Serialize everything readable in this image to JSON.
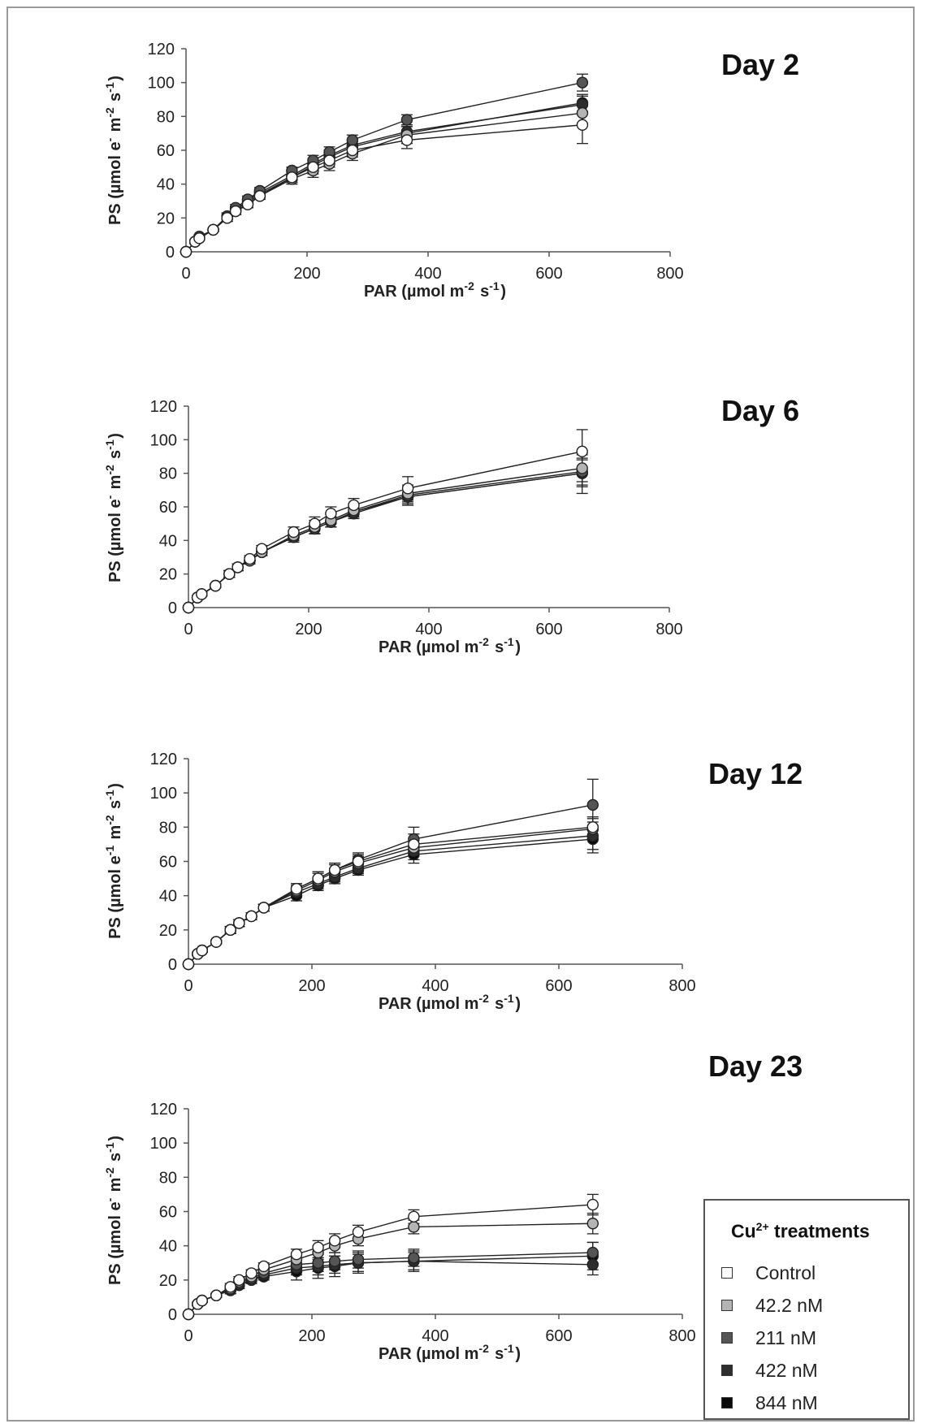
{
  "chart_data": [
    {
      "type": "line",
      "title": "Day 2",
      "xlabel": "PAR (µmol m-2 s-1)",
      "ylabel": "PS (µmol e- m-2 s-1)",
      "xlim": [
        0,
        800
      ],
      "ylim": [
        0,
        120
      ],
      "xticks": [
        "0",
        "200",
        "400",
        "600",
        "800"
      ],
      "yticks": [
        "0",
        "20",
        "40",
        "60",
        "80",
        "100",
        "120"
      ],
      "x": [
        0,
        15,
        22,
        45,
        68,
        82,
        102,
        122,
        175,
        210,
        237,
        275,
        365,
        655
      ],
      "series": [
        {
          "name": "Control",
          "values": [
            0,
            6,
            8,
            13,
            20,
            24,
            28,
            33,
            44,
            50,
            54,
            60,
            66,
            75
          ],
          "err": [
            0,
            1,
            1,
            1,
            2,
            2,
            2,
            2,
            3,
            4,
            4,
            4,
            5,
            11
          ]
        },
        {
          "name": "42.2 nM",
          "values": [
            0,
            6,
            8,
            13,
            20,
            24,
            28,
            33,
            43,
            48,
            52,
            58,
            69,
            82
          ],
          "err": [
            0,
            1,
            1,
            1,
            2,
            2,
            2,
            2,
            3,
            4,
            4,
            4,
            5,
            6
          ]
        },
        {
          "name": "211 nM",
          "values": [
            0,
            6,
            9,
            13,
            21,
            26,
            31,
            36,
            48,
            54,
            59,
            66,
            78,
            100
          ],
          "err": [
            0,
            1,
            1,
            1,
            2,
            2,
            2,
            2,
            2,
            3,
            3,
            3,
            3,
            5
          ]
        },
        {
          "name": "422 nM",
          "values": [
            0,
            6,
            8,
            13,
            21,
            25,
            30,
            35,
            45,
            52,
            57,
            63,
            71,
            87
          ],
          "err": [
            0,
            1,
            1,
            1,
            2,
            2,
            2,
            2,
            3,
            3,
            3,
            3,
            4,
            5
          ]
        },
        {
          "name": "844 nM",
          "values": [
            0,
            6,
            8,
            13,
            20,
            25,
            29,
            34,
            44,
            51,
            56,
            62,
            70,
            88
          ],
          "err": [
            0,
            1,
            1,
            1,
            2,
            2,
            2,
            2,
            3,
            3,
            3,
            3,
            4,
            5
          ]
        }
      ]
    },
    {
      "type": "line",
      "title": "Day 6",
      "xlabel": "PAR (µmol m-2 s-1)",
      "ylabel": "PS (µmol e- m-2 s-1)",
      "xlim": [
        0,
        800
      ],
      "ylim": [
        0,
        120
      ],
      "xticks": [
        "0",
        "200",
        "400",
        "600",
        "800"
      ],
      "yticks": [
        "0",
        "20",
        "40",
        "60",
        "80",
        "100",
        "120"
      ],
      "x": [
        0,
        15,
        22,
        45,
        68,
        82,
        102,
        122,
        175,
        210,
        237,
        275,
        365,
        655
      ],
      "series": [
        {
          "name": "Control",
          "values": [
            0,
            6,
            8,
            13,
            20,
            24,
            29,
            35,
            45,
            50,
            56,
            61,
            71,
            93
          ],
          "err": [
            0,
            1,
            1,
            1,
            2,
            2,
            2,
            2,
            3,
            4,
            4,
            4,
            7,
            13
          ]
        },
        {
          "name": "42.2 nM",
          "values": [
            0,
            6,
            8,
            13,
            20,
            24,
            28,
            33,
            43,
            48,
            52,
            58,
            68,
            83
          ],
          "err": [
            0,
            1,
            1,
            1,
            2,
            2,
            2,
            2,
            3,
            4,
            4,
            4,
            5,
            8
          ]
        },
        {
          "name": "211 nM",
          "values": [
            0,
            6,
            8,
            13,
            20,
            24,
            28,
            33,
            42,
            47,
            51,
            57,
            67,
            81
          ],
          "err": [
            0,
            1,
            1,
            1,
            2,
            2,
            2,
            2,
            3,
            3,
            3,
            3,
            5,
            8
          ]
        },
        {
          "name": "422 nM",
          "values": [
            0,
            6,
            8,
            13,
            20,
            24,
            28,
            33,
            42,
            47,
            51,
            56,
            66,
            80
          ],
          "err": [
            0,
            1,
            1,
            1,
            2,
            2,
            2,
            2,
            3,
            3,
            3,
            3,
            5,
            8
          ]
        },
        {
          "name": "844 nM",
          "values": [
            0,
            6,
            8,
            13,
            20,
            24,
            28,
            33,
            42,
            47,
            51,
            57,
            66,
            80
          ],
          "err": [
            0,
            1,
            1,
            1,
            2,
            2,
            2,
            2,
            3,
            3,
            3,
            3,
            5,
            12
          ]
        }
      ]
    },
    {
      "type": "line",
      "title": "Day 12",
      "xlabel": "PAR (µmol m-2 s-1)",
      "ylabel": "PS (µmol e-1 m-2 s-1)",
      "xlim": [
        0,
        800
      ],
      "ylim": [
        0,
        120
      ],
      "xticks": [
        "0",
        "200",
        "400",
        "600",
        "800"
      ],
      "yticks": [
        "0",
        "20",
        "40",
        "60",
        "80",
        "100",
        "120"
      ],
      "x": [
        0,
        15,
        22,
        45,
        68,
        82,
        102,
        122,
        175,
        210,
        237,
        275,
        365,
        655
      ],
      "series": [
        {
          "name": "Control",
          "values": [
            0,
            6,
            8,
            13,
            20,
            24,
            28,
            33,
            44,
            50,
            55,
            60,
            70,
            80
          ],
          "err": [
            0,
            1,
            1,
            1,
            2,
            2,
            2,
            2,
            3,
            4,
            4,
            4,
            6,
            6
          ]
        },
        {
          "name": "42.2 nM",
          "values": [
            0,
            6,
            8,
            13,
            20,
            24,
            28,
            33,
            43,
            49,
            54,
            59,
            68,
            79
          ],
          "err": [
            0,
            1,
            1,
            1,
            2,
            2,
            2,
            2,
            3,
            4,
            4,
            4,
            5,
            6
          ]
        },
        {
          "name": "211 nM",
          "values": [
            0,
            6,
            8,
            13,
            20,
            24,
            28,
            33,
            44,
            50,
            55,
            61,
            73,
            93
          ],
          "err": [
            0,
            1,
            1,
            1,
            2,
            2,
            2,
            2,
            3,
            4,
            4,
            4,
            7,
            15
          ]
        },
        {
          "name": "422 nM",
          "values": [
            0,
            6,
            8,
            13,
            20,
            24,
            28,
            33,
            42,
            47,
            51,
            56,
            66,
            75
          ],
          "err": [
            0,
            1,
            1,
            1,
            2,
            2,
            2,
            2,
            3,
            3,
            3,
            3,
            5,
            8
          ]
        },
        {
          "name": "844 nM",
          "values": [
            0,
            6,
            8,
            13,
            20,
            24,
            28,
            33,
            40,
            46,
            50,
            55,
            64,
            73
          ],
          "err": [
            0,
            1,
            1,
            1,
            2,
            2,
            2,
            2,
            3,
            3,
            3,
            3,
            5,
            8
          ]
        }
      ]
    },
    {
      "type": "line",
      "title": "Day 23",
      "xlabel": "PAR (µmol m-2 s-1)",
      "ylabel": "PS (µmol e- m-2 s-1)",
      "xlim": [
        0,
        800
      ],
      "ylim": [
        0,
        120
      ],
      "xticks": [
        "0",
        "200",
        "400",
        "600",
        "800"
      ],
      "yticks": [
        "0",
        "20",
        "40",
        "60",
        "80",
        "100",
        "120"
      ],
      "x": [
        0,
        15,
        22,
        45,
        68,
        82,
        102,
        122,
        175,
        210,
        237,
        275,
        365,
        655
      ],
      "series": [
        {
          "name": "Control",
          "values": [
            0,
            6,
            8,
            11,
            16,
            20,
            24,
            28,
            35,
            39,
            43,
            48,
            57,
            64
          ],
          "err": [
            0,
            1,
            1,
            1,
            2,
            2,
            2,
            2,
            3,
            4,
            4,
            4,
            4,
            6
          ]
        },
        {
          "name": "42.2 nM",
          "values": [
            0,
            6,
            8,
            11,
            15,
            19,
            22,
            26,
            32,
            36,
            40,
            44,
            51,
            53
          ],
          "err": [
            0,
            1,
            1,
            1,
            2,
            2,
            2,
            2,
            3,
            4,
            4,
            4,
            4,
            6
          ]
        },
        {
          "name": "211 nM",
          "values": [
            0,
            6,
            8,
            11,
            15,
            18,
            21,
            24,
            29,
            30,
            31,
            32,
            33,
            36
          ],
          "err": [
            0,
            1,
            1,
            1,
            2,
            2,
            2,
            2,
            4,
            5,
            5,
            5,
            5,
            6
          ]
        },
        {
          "name": "422 nM",
          "values": [
            0,
            6,
            8,
            11,
            14,
            17,
            20,
            23,
            27,
            28,
            29,
            30,
            31,
            29
          ],
          "err": [
            0,
            1,
            1,
            1,
            2,
            2,
            2,
            2,
            4,
            5,
            5,
            5,
            5,
            6
          ]
        },
        {
          "name": "844 nM",
          "values": [
            0,
            6,
            8,
            11,
            14,
            17,
            20,
            22,
            25,
            27,
            28,
            30,
            31,
            34
          ],
          "err": [
            0,
            1,
            1,
            1,
            2,
            2,
            2,
            2,
            5,
            6,
            6,
            6,
            6,
            8
          ]
        }
      ]
    }
  ],
  "legend": {
    "title_main": "Cu",
    "title_sup": "2+",
    "title_rest": " treatments",
    "items": [
      {
        "label": "Control",
        "color": "#ffffff"
      },
      {
        "label": "42.2 nM",
        "color": "#b4b4b4"
      },
      {
        "label": "211 nM",
        "color": "#555555"
      },
      {
        "label": "422 nM",
        "color": "#2e2e2e"
      },
      {
        "label": "844 nM",
        "color": "#0a0a0a"
      }
    ]
  },
  "series_colors": [
    "#ffffff",
    "#b4b4b4",
    "#555555",
    "#2e2e2e",
    "#0a0a0a"
  ]
}
